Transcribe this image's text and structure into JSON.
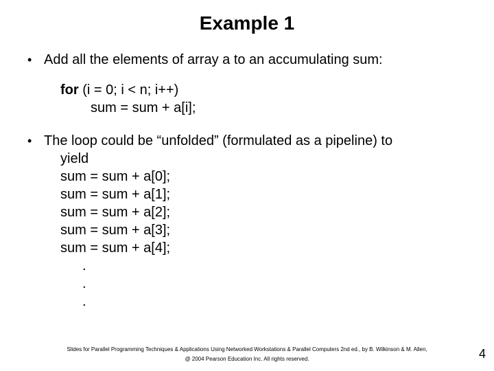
{
  "slide": {
    "title": "Example 1",
    "bullet1_prefix": "Add all the elements of array ",
    "bullet1_array": "a",
    "bullet1_suffix": " to an accumulating sum:",
    "code": {
      "kw": "for",
      "line1_rest": " (i = 0; i < n; i++)",
      "line2": "sum = sum + a[i];"
    },
    "bullet2": "The loop could be “unfolded”  (formulated as a pipeline) to",
    "unfold": {
      "yield": "yield",
      "l0": "sum = sum + a[0];",
      "l1": "sum = sum + a[1];",
      "l2": "sum = sum + a[2];",
      "l3": "sum = sum + a[3];",
      "l4": "sum = sum + a[4];",
      "dot": "."
    },
    "footer_line1": "Slides for Parallel Programming Techniques & Applications Using Networked Workstations & Parallel Computers 2nd ed., by B. Wilkinson & M. Allen,",
    "footer_line2": "@ 2004 Pearson Education Inc. All rights reserved.",
    "page_number": "4"
  },
  "style": {
    "background_color": "#ffffff",
    "text_color": "#000000",
    "title_fontsize": 28,
    "body_fontsize": 20,
    "footer_fontsize": 8
  }
}
